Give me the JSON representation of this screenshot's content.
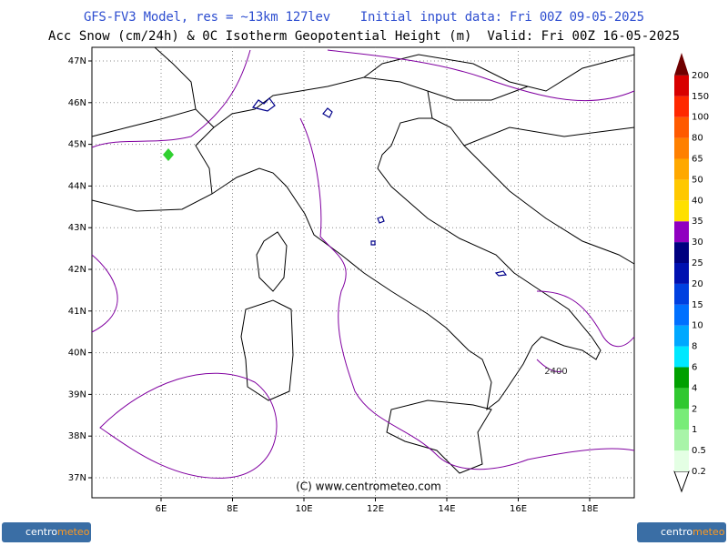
{
  "header": {
    "title": "GFS-FV3 Model, res = ~13km 127lev    Initial input data: Fri 00Z 09-05-2025",
    "subtitle": "Acc Snow (cm/24h) & 0C Isotherm Geopotential Height (m)  Valid: Fri 00Z 16-05-2025"
  },
  "map": {
    "lat_labels": [
      "47N",
      "46N",
      "45N",
      "44N",
      "43N",
      "42N",
      "41N",
      "40N",
      "39N",
      "38N",
      "37N"
    ],
    "lon_labels": [
      "6E",
      "8E",
      "10E",
      "12E",
      "14E",
      "16E",
      "18E"
    ],
    "contour_label": "2400",
    "copyright": "(C) www.centrometeo.com"
  },
  "legend": {
    "labels": [
      0.2,
      0.5,
      1,
      2,
      4,
      6,
      8,
      10,
      15,
      20,
      25,
      30,
      35,
      40,
      50,
      65,
      80,
      100,
      150,
      200
    ],
    "colors": [
      "#e4ffe4",
      "#a8f4a8",
      "#78ec78",
      "#30c830",
      "#00a000",
      "#00e8ff",
      "#00a8ff",
      "#0070ff",
      "#0040e0",
      "#0010b0",
      "#000080",
      "#9000c0",
      "#ffe000",
      "#ffc800",
      "#ffa800",
      "#ff8000",
      "#ff5a00",
      "#ff2800",
      "#d80000",
      "#a00000"
    ],
    "top_color": "#700000"
  },
  "logo": [
    "centro",
    "meteo"
  ]
}
